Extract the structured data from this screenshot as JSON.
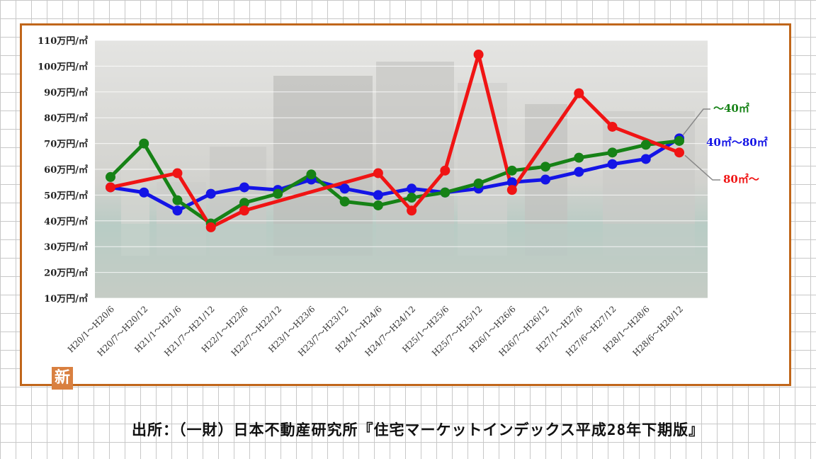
{
  "chart_data": {
    "type": "line",
    "ylim": [
      10,
      110
    ],
    "y_tick_labels": [
      "110万円/㎡",
      "100万円/㎡",
      "90万円/㎡",
      "80万円/㎡",
      "70万円/㎡",
      "60万円/㎡",
      "50万円/㎡",
      "40万円/㎡",
      "30万円/㎡",
      "20万円/㎡",
      "10万円/㎡"
    ],
    "categories": [
      "H20/1～H20/6",
      "H20/7～H20/12",
      "H21/1～H21/6",
      "H21/7～H21/12",
      "H22/1～H22/6",
      "H22/7～H22/12",
      "H23/1～H23/6",
      "H23/7～H23/12",
      "H24/1～H24/6",
      "H24/7～H24/12",
      "H25/1～H25/6",
      "H25/7～H25/12",
      "H26/1～H26/6",
      "H26/7～H26/12",
      "H27/1～H27/6",
      "H27/6～H27/12",
      "H28/1～H28/6",
      "H28/6～H28/12"
    ],
    "grid": true,
    "series": [
      {
        "name": "40㎡～80㎡",
        "color": "#1414e6",
        "values": [
          53,
          51,
          44,
          50.5,
          53,
          52,
          56,
          52.5,
          50,
          52.5,
          51,
          52.5,
          55,
          56,
          59,
          62,
          64,
          72
        ]
      },
      {
        "name": "～40㎡",
        "color": "#168216",
        "values": [
          57,
          70,
          48,
          39,
          47,
          50.5,
          58,
          47.5,
          46,
          49,
          51,
          54.5,
          59.5,
          61,
          64.5,
          66.5,
          69.5,
          71
        ]
      },
      {
        "name": "80㎡～",
        "color": "#f01414",
        "values": [
          53,
          null,
          58.5,
          37.5,
          44,
          null,
          null,
          null,
          58.5,
          44,
          59.5,
          104.5,
          52,
          null,
          89.5,
          76.5,
          null,
          66.5
        ]
      }
    ]
  },
  "badge": "新",
  "source_note": "出所：（一財）日本不動産研究所『住宅マーケットインデックス平成28年下期版』"
}
